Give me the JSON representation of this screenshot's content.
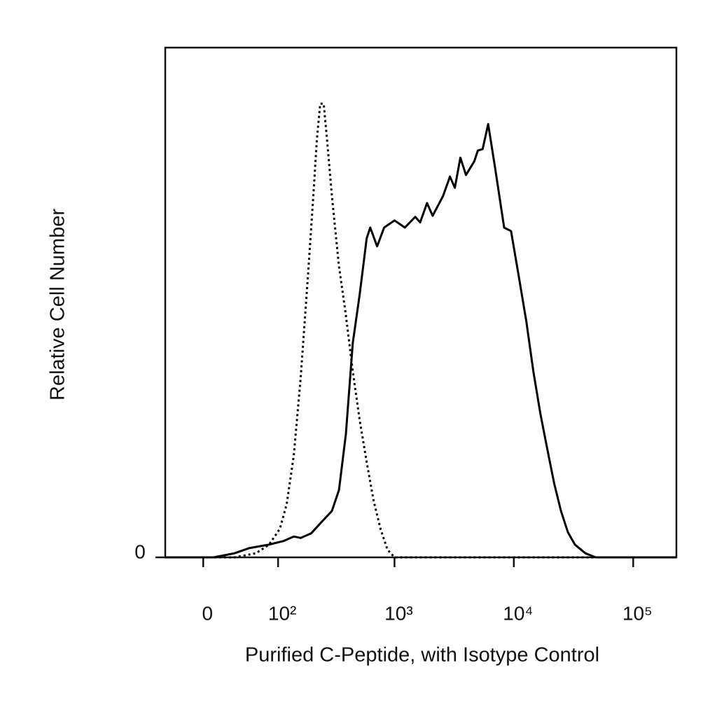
{
  "chart_data": {
    "type": "line",
    "x_label": "Purified C-Peptide, with Isotype Control",
    "y_label": "Relative Cell Number",
    "xscale": "biexponential",
    "xlim": [
      -40,
      230000
    ],
    "xticks": [
      0,
      {
        "value": 100,
        "label": "10²"
      },
      {
        "value": 1000,
        "label": "10³"
      },
      {
        "value": 10000,
        "label": "10⁴"
      },
      {
        "value": 100000,
        "label": "10⁵"
      }
    ],
    "ylim": [
      0,
      100
    ],
    "yticks": [
      0
    ],
    "series": [
      {
        "color": "#000000",
        "dash": "dotted",
        "x": [
          -40,
          32,
          60,
          82,
          104,
          120,
          139,
          160,
          184,
          206,
          221,
          236,
          253,
          270,
          297,
          341,
          390,
          446,
          510,
          584,
          668,
          763,
          873,
          1000,
          230000
        ],
        "values": [
          0,
          0,
          0.8,
          2.5,
          5.6,
          10.4,
          20,
          35.2,
          54.4,
          70.9,
          81.9,
          89,
          89,
          81.9,
          70.9,
          57.1,
          47.5,
          36.5,
          26.9,
          18.7,
          11.1,
          5.6,
          1.5,
          0,
          0
        ]
      },
      {
        "color": "#000000",
        "dash": "solid",
        "x": [
          -40,
          10,
          32,
          50,
          82,
          112,
          139,
          160,
          197,
          244,
          297,
          341,
          390,
          446,
          510,
          584,
          626,
          715,
          818,
          1000,
          1222,
          1493,
          1640,
          1875,
          2088,
          2553,
          2917,
          3206,
          3566,
          3971,
          4665,
          4988,
          5476,
          6095,
          6966,
          8299,
          9484,
          11140,
          12740,
          14560,
          16640,
          19010,
          21730,
          24830,
          28380,
          32510,
          39720,
          48530,
          230000
        ],
        "values": [
          0,
          0,
          0.8,
          1.8,
          2.5,
          3.2,
          4.1,
          3.8,
          4.7,
          7.0,
          9.1,
          13.2,
          24.2,
          42.0,
          51.6,
          62.6,
          64.7,
          61.0,
          64.7,
          66.1,
          64.7,
          66.8,
          65.7,
          69.5,
          67.0,
          70.9,
          74.7,
          72.5,
          78.4,
          75.0,
          77.7,
          79.8,
          80.1,
          85.0,
          76.4,
          64.7,
          64.0,
          54.4,
          46.2,
          36.5,
          28.3,
          21.4,
          14.6,
          9.1,
          4.9,
          2.5,
          0.8,
          0,
          0
        ]
      }
    ]
  }
}
